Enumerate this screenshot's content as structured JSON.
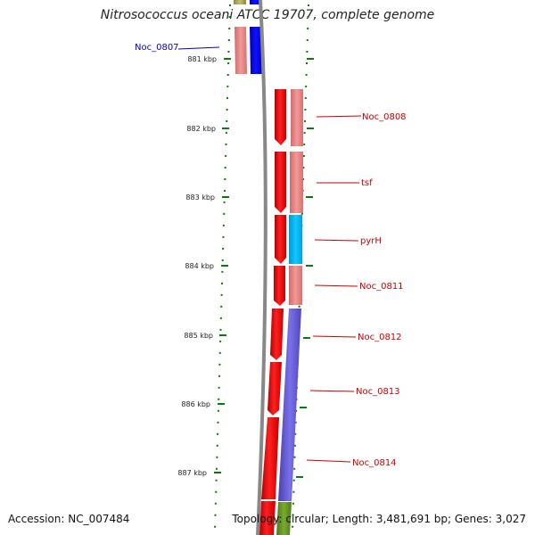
{
  "title": "Nitrosococcus oceani ATCC 19707, complete genome",
  "accession_text": "Accession: NC_007484",
  "summary_text": "Topology: circular; Length: 3,481,691 bp; Genes: 3,027",
  "scale": {
    "labels": [
      "881 kbp",
      "882 kbp",
      "883 kbp",
      "884 kbp",
      "885 kbp",
      "886 kbp",
      "887 kbp"
    ]
  },
  "genes": [
    {
      "name": "Noc_0807",
      "strand": "reverse",
      "color": "#0000ee",
      "label_color": "#0000cc"
    },
    {
      "name": "Noc_0808",
      "strand": "forward",
      "color": "#e07a7a",
      "label_color": "#cc0000"
    },
    {
      "name": "tsf",
      "strand": "forward",
      "color": "#e07a7a",
      "label_color": "#cc0000"
    },
    {
      "name": "pyrH",
      "strand": "forward",
      "color": "#00b4f0",
      "label_color": "#cc0000"
    },
    {
      "name": "Noc_0811",
      "strand": "forward",
      "color": "#e07a7a",
      "label_color": "#cc0000"
    },
    {
      "name": "Noc_0812",
      "strand": "forward",
      "color": "#6a5acd",
      "label_color": "#cc0000"
    },
    {
      "name": "Noc_0813",
      "strand": "forward",
      "color": "#6a5acd",
      "label_color": "#cc0000"
    },
    {
      "name": "Noc_0814",
      "strand": "forward",
      "color": "#6a5acd",
      "label_color": "#cc0000"
    }
  ],
  "colors": {
    "cds": "#ff0000",
    "backbone": "#808080",
    "ticks": "#0a7a0a",
    "tick_label": "#222222"
  }
}
